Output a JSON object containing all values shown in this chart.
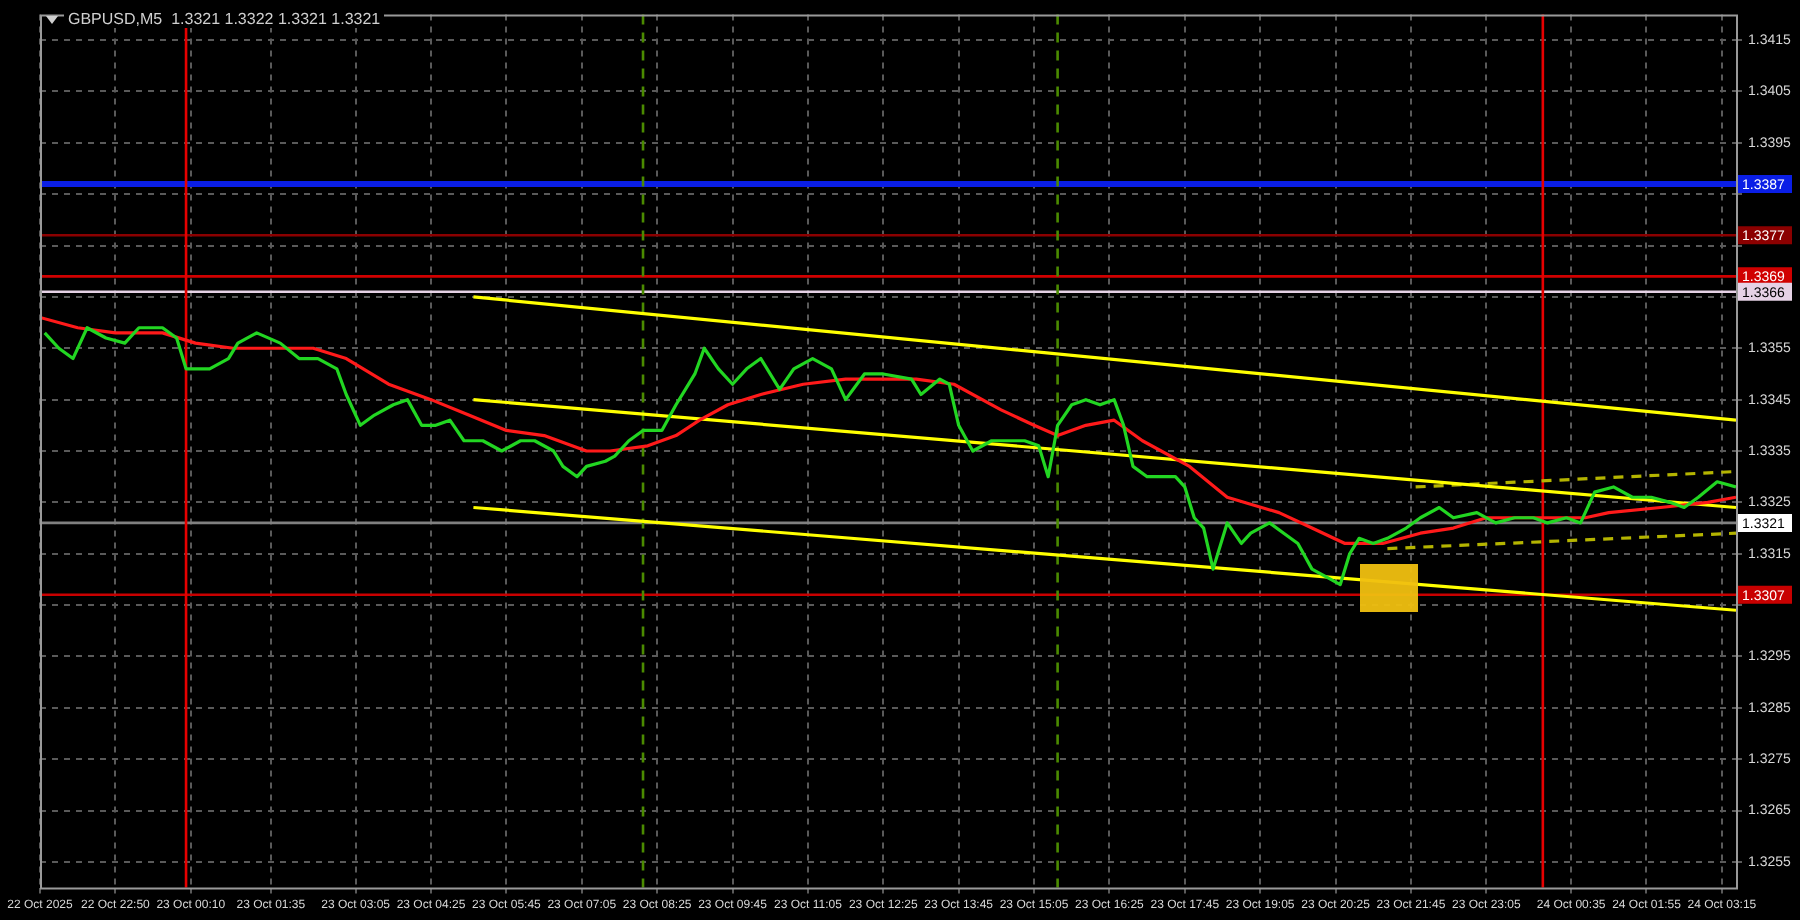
{
  "chart_data": {
    "type": "line",
    "title": "GBPUSD,M5  1.3321 1.3322 1.3321 1.3321",
    "xlim": [
      "2025-10-22T21:30",
      "2025-10-24T03:30"
    ],
    "xticks": [
      {
        "value": "2025-10-22T21:30",
        "label": "22 Oct 2025"
      },
      {
        "value": "2025-10-22T22:50",
        "label": "22 Oct 22:50"
      },
      {
        "value": "2025-10-23T00:10",
        "label": "23 Oct 00:10"
      },
      {
        "value": "2025-10-23T01:35",
        "label": "23 Oct 01:35"
      },
      {
        "value": "2025-10-23T03:05",
        "label": "23 Oct 03:05"
      },
      {
        "value": "2025-10-23T04:25",
        "label": "23 Oct 04:25"
      },
      {
        "value": "2025-10-23T05:45",
        "label": "23 Oct 05:45"
      },
      {
        "value": "2025-10-23T07:05",
        "label": "23 Oct 07:05"
      },
      {
        "value": "2025-10-23T08:25",
        "label": "23 Oct 08:25"
      },
      {
        "value": "2025-10-23T09:45",
        "label": "23 Oct 09:45"
      },
      {
        "value": "2025-10-23T11:05",
        "label": "23 Oct 11:05"
      },
      {
        "value": "2025-10-23T12:25",
        "label": "23 Oct 12:25"
      },
      {
        "value": "2025-10-23T13:45",
        "label": "23 Oct 13:45"
      },
      {
        "value": "2025-10-23T15:05",
        "label": "23 Oct 15:05"
      },
      {
        "value": "2025-10-23T16:25",
        "label": "23 Oct 16:25"
      },
      {
        "value": "2025-10-23T17:45",
        "label": "23 Oct 17:45"
      },
      {
        "value": "2025-10-23T19:05",
        "label": "23 Oct 19:05"
      },
      {
        "value": "2025-10-23T20:25",
        "label": "23 Oct 20:25"
      },
      {
        "value": "2025-10-23T21:45",
        "label": "23 Oct 21:45"
      },
      {
        "value": "2025-10-23T23:05",
        "label": "23 Oct 23:05"
      },
      {
        "value": "2025-10-24T00:35",
        "label": "24 Oct 00:35"
      },
      {
        "value": "2025-10-24T01:55",
        "label": "24 Oct 01:55"
      },
      {
        "value": "2025-10-24T03:15",
        "label": "24 Oct 03:15"
      }
    ],
    "ylim": [
      1.325,
      1.342
    ],
    "yticks": [
      1.3255,
      1.3265,
      1.3275,
      1.3285,
      1.3295,
      {
        "value": 1.3305,
        "label": null
      },
      1.3315,
      1.3325,
      1.3335,
      1.3345,
      1.3355,
      {
        "value": 1.3365,
        "label": null
      },
      {
        "value": 1.3375,
        "label": null
      },
      {
        "value": 1.3385,
        "label": null
      },
      1.3395,
      1.3405,
      1.3415
    ],
    "grid": true,
    "marker": "none",
    "series": [
      {
        "color": "#22d622",
        "x": [
          "2025-10-22T21:35",
          "2025-10-22T21:50",
          "2025-10-22T22:05",
          "2025-10-22T22:20",
          "2025-10-22T22:40",
          "2025-10-22T23:00",
          "2025-10-22T23:15",
          "2025-10-22T23:40",
          "2025-10-22T23:55",
          "2025-10-23T00:05",
          "2025-10-23T00:15",
          "2025-10-23T00:30",
          "2025-10-23T00:50",
          "2025-10-23T01:00",
          "2025-10-23T01:20",
          "2025-10-23T01:45",
          "2025-10-23T02:05",
          "2025-10-23T02:25",
          "2025-10-23T02:45",
          "2025-10-23T02:55",
          "2025-10-23T03:10",
          "2025-10-23T03:25",
          "2025-10-23T03:45",
          "2025-10-23T04:00",
          "2025-10-23T04:15",
          "2025-10-23T04:30",
          "2025-10-23T04:45",
          "2025-10-23T05:00",
          "2025-10-23T05:20",
          "2025-10-23T05:40",
          "2025-10-23T06:00",
          "2025-10-23T06:15",
          "2025-10-23T06:35",
          "2025-10-23T06:45",
          "2025-10-23T07:00",
          "2025-10-23T07:10",
          "2025-10-23T07:30",
          "2025-10-23T07:40",
          "2025-10-23T07:55",
          "2025-10-23T08:10",
          "2025-10-23T08:30",
          "2025-10-23T08:45",
          "2025-10-23T08:55",
          "2025-10-23T09:05",
          "2025-10-23T09:15",
          "2025-10-23T09:30",
          "2025-10-23T09:45",
          "2025-10-23T10:00",
          "2025-10-23T10:15",
          "2025-10-23T10:35",
          "2025-10-23T10:50",
          "2025-10-23T11:10",
          "2025-10-23T11:30",
          "2025-10-23T11:45",
          "2025-10-23T12:05",
          "2025-10-23T12:25",
          "2025-10-23T12:55",
          "2025-10-23T13:05",
          "2025-10-23T13:25",
          "2025-10-23T13:35",
          "2025-10-23T13:45",
          "2025-10-23T14:00",
          "2025-10-23T14:20",
          "2025-10-23T14:35",
          "2025-10-23T14:55",
          "2025-10-23T15:10",
          "2025-10-23T15:20",
          "2025-10-23T15:30",
          "2025-10-23T15:45",
          "2025-10-23T16:00",
          "2025-10-23T16:15",
          "2025-10-23T16:30",
          "2025-10-23T16:40",
          "2025-10-23T16:50",
          "2025-10-23T17:05",
          "2025-10-23T17:20",
          "2025-10-23T17:35",
          "2025-10-23T17:45",
          "2025-10-23T17:55",
          "2025-10-23T18:05",
          "2025-10-23T18:15",
          "2025-10-23T18:30",
          "2025-10-23T18:45",
          "2025-10-23T18:55",
          "2025-10-23T19:15",
          "2025-10-23T19:30",
          "2025-10-23T19:45",
          "2025-10-23T20:00",
          "2025-10-23T20:20",
          "2025-10-23T20:30",
          "2025-10-23T20:40",
          "2025-10-23T20:50",
          "2025-10-23T21:05",
          "2025-10-23T21:20",
          "2025-10-23T21:40",
          "2025-10-23T21:55",
          "2025-10-23T22:15",
          "2025-10-23T22:30",
          "2025-10-23T22:55",
          "2025-10-23T23:15",
          "2025-10-23T23:35",
          "2025-10-23T23:55",
          "2025-10-24T00:10",
          "2025-10-24T00:30",
          "2025-10-24T00:45",
          "2025-10-24T01:00",
          "2025-10-24T01:20",
          "2025-10-24T01:40",
          "2025-10-24T02:00",
          "2025-10-24T02:20",
          "2025-10-24T02:35",
          "2025-10-24T02:50",
          "2025-10-24T03:10",
          "2025-10-24T03:30"
        ],
        "values": [
          1.3358,
          1.3355,
          1.3353,
          1.3359,
          1.3357,
          1.3356,
          1.3359,
          1.3359,
          1.3357,
          1.3351,
          1.3351,
          1.3351,
          1.3353,
          1.3356,
          1.3358,
          1.3356,
          1.3353,
          1.3353,
          1.3351,
          1.3346,
          1.334,
          1.3342,
          1.3344,
          1.3345,
          1.334,
          1.334,
          1.3341,
          1.3337,
          1.3337,
          1.3335,
          1.3337,
          1.3337,
          1.3335,
          1.3332,
          1.333,
          1.3332,
          1.3333,
          1.3334,
          1.3337,
          1.3339,
          1.3339,
          1.3344,
          1.3347,
          1.335,
          1.3355,
          1.3351,
          1.3348,
          1.3351,
          1.3353,
          1.3347,
          1.3351,
          1.3353,
          1.3351,
          1.3345,
          1.335,
          1.335,
          1.3349,
          1.3346,
          1.3349,
          1.3348,
          1.334,
          1.3335,
          1.3337,
          1.3337,
          1.3337,
          1.3336,
          1.333,
          1.334,
          1.3344,
          1.3345,
          1.3344,
          1.3345,
          1.334,
          1.3332,
          1.333,
          1.333,
          1.333,
          1.3328,
          1.3322,
          1.332,
          1.3312,
          1.3321,
          1.3317,
          1.3319,
          1.3321,
          1.3319,
          1.3317,
          1.3312,
          1.331,
          1.3309,
          1.3315,
          1.3318,
          1.3317,
          1.3318,
          1.332,
          1.3322,
          1.3324,
          1.3322,
          1.3323,
          1.3321,
          1.3322,
          1.3322,
          1.3321,
          1.3322,
          1.3321,
          1.3327,
          1.3328,
          1.3326,
          1.3326,
          1.3325,
          1.3324,
          1.3326,
          1.3329,
          1.3328
        ]
      },
      {
        "color": "#ff1a1a",
        "x": [
          "2025-10-22T21:30",
          "2025-10-22T22:10",
          "2025-10-22T22:50",
          "2025-10-22T23:40",
          "2025-10-23T00:15",
          "2025-10-23T00:55",
          "2025-10-23T01:35",
          "2025-10-23T02:20",
          "2025-10-23T02:55",
          "2025-10-23T03:40",
          "2025-10-23T04:25",
          "2025-10-23T05:05",
          "2025-10-23T05:45",
          "2025-10-23T06:25",
          "2025-10-23T07:10",
          "2025-10-23T07:35",
          "2025-10-23T08:15",
          "2025-10-23T08:45",
          "2025-10-23T09:10",
          "2025-10-23T09:40",
          "2025-10-23T10:15",
          "2025-10-23T11:00",
          "2025-10-23T11:45",
          "2025-10-23T12:25",
          "2025-10-23T13:00",
          "2025-10-23T13:40",
          "2025-10-23T14:30",
          "2025-10-23T15:05",
          "2025-10-23T15:30",
          "2025-10-23T16:00",
          "2025-10-23T16:30",
          "2025-10-23T17:00",
          "2025-10-23T17:50",
          "2025-10-23T18:30",
          "2025-10-23T19:25",
          "2025-10-23T20:00",
          "2025-10-23T20:35",
          "2025-10-23T21:15",
          "2025-10-23T21:55",
          "2025-10-23T22:30",
          "2025-10-23T23:05",
          "2025-10-23T23:55",
          "2025-10-24T00:50",
          "2025-10-24T01:15",
          "2025-10-24T02:10",
          "2025-10-24T03:00",
          "2025-10-24T03:30"
        ],
        "values": [
          1.3361,
          1.3359,
          1.3358,
          1.3358,
          1.3356,
          1.3355,
          1.3355,
          1.3355,
          1.3353,
          1.3348,
          1.3345,
          1.3342,
          1.3339,
          1.3338,
          1.3335,
          1.3335,
          1.3336,
          1.3338,
          1.3341,
          1.3344,
          1.3346,
          1.3348,
          1.3349,
          1.3349,
          1.3349,
          1.3348,
          1.3343,
          1.334,
          1.3338,
          1.334,
          1.3341,
          1.3337,
          1.3332,
          1.3326,
          1.3323,
          1.332,
          1.3317,
          1.3317,
          1.3319,
          1.332,
          1.3322,
          1.3322,
          1.3322,
          1.3323,
          1.3324,
          1.3325,
          1.3326
        ]
      },
      {
        "color": "#ffff00",
        "x": [
          "2025-10-23T05:10",
          "2025-10-24T03:30"
        ],
        "values": [
          1.3365,
          1.3341
        ]
      },
      {
        "color": "#ffff00",
        "x": [
          "2025-10-23T05:10",
          "2025-10-24T03:30"
        ],
        "values": [
          1.3345,
          1.3324
        ]
      },
      {
        "color": "#ffff00",
        "x": [
          "2025-10-23T05:10",
          "2025-10-24T03:30"
        ],
        "values": [
          1.3324,
          1.3304
        ]
      },
      {
        "color": "#b4b400",
        "line_style": "dashed",
        "x": [
          "2025-10-23T21:50",
          "2025-10-24T03:30"
        ],
        "values": [
          1.3328,
          1.3331
        ]
      },
      {
        "color": "#b4b400",
        "line_style": "dashed",
        "x": [
          "2025-10-23T21:20",
          "2025-10-24T03:30"
        ],
        "values": [
          1.3316,
          1.3319
        ]
      }
    ],
    "ref_lines": [
      {
        "axis": "y",
        "value": 1.3387,
        "label": "1.3387",
        "color": "#0a1ee6"
      },
      {
        "axis": "y",
        "value": 1.3377,
        "label": "1.3377",
        "color": "#8b0000"
      },
      {
        "axis": "y",
        "value": 1.3369,
        "label": "1.3369",
        "color": "#d00000"
      },
      {
        "axis": "y",
        "value": 1.3366,
        "label": "1.3366",
        "color": "#e6d2e6"
      },
      {
        "axis": "y",
        "value": 1.3321,
        "label": "1.3321",
        "color": "#808080"
      },
      {
        "axis": "y",
        "value": 1.3307,
        "label": "1.3307",
        "color": "#c80000"
      },
      {
        "axis": "x",
        "value": "2025-10-23T00:05",
        "color": "#e60000"
      },
      {
        "axis": "x",
        "value": "2025-10-24T00:05",
        "color": "#e60000"
      },
      {
        "axis": "x",
        "value": "2025-10-23T08:10",
        "color": "#4b8b00",
        "line_style": "dashed"
      },
      {
        "axis": "x",
        "value": "2025-10-23T15:30",
        "color": "#4b8b00",
        "line_style": "dashed"
      }
    ]
  }
}
